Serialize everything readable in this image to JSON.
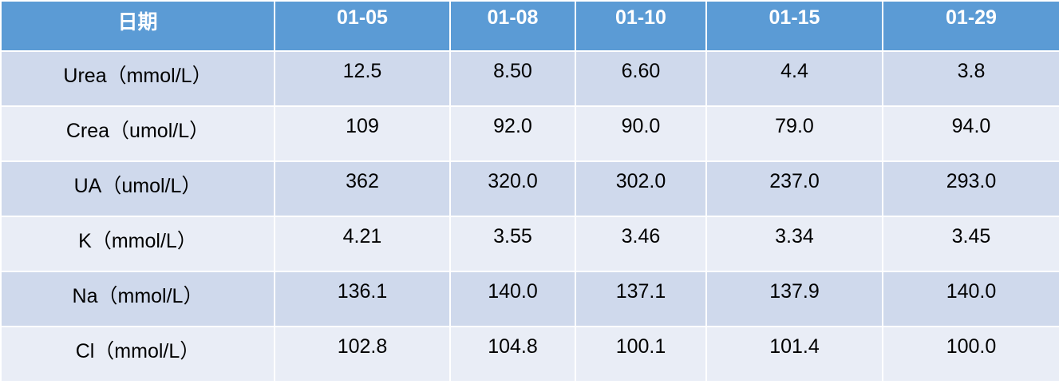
{
  "table": {
    "header": [
      "日期",
      "01-05",
      "01-08",
      "01-10",
      "01-15",
      "01-29"
    ],
    "rows": [
      [
        "Urea（mmol/L）",
        "12.5",
        "8.50",
        "6.60",
        "4.4",
        "3.8"
      ],
      [
        "Crea（umol/L）",
        "109",
        "92.0",
        "90.0",
        "79.0",
        "94.0"
      ],
      [
        "UA（umol/L）",
        "362",
        "320.0",
        "302.0",
        "237.0",
        "293.0"
      ],
      [
        "K（mmol/L）",
        "4.21",
        "3.55",
        "3.46",
        "3.34",
        "3.45"
      ],
      [
        "Na（mmol/L）",
        "136.1",
        "140.0",
        "137.1",
        "137.9",
        "140.0"
      ],
      [
        "Cl（mmol/L）",
        "102.8",
        "104.8",
        "100.1",
        "101.4",
        "100.0"
      ]
    ]
  }
}
